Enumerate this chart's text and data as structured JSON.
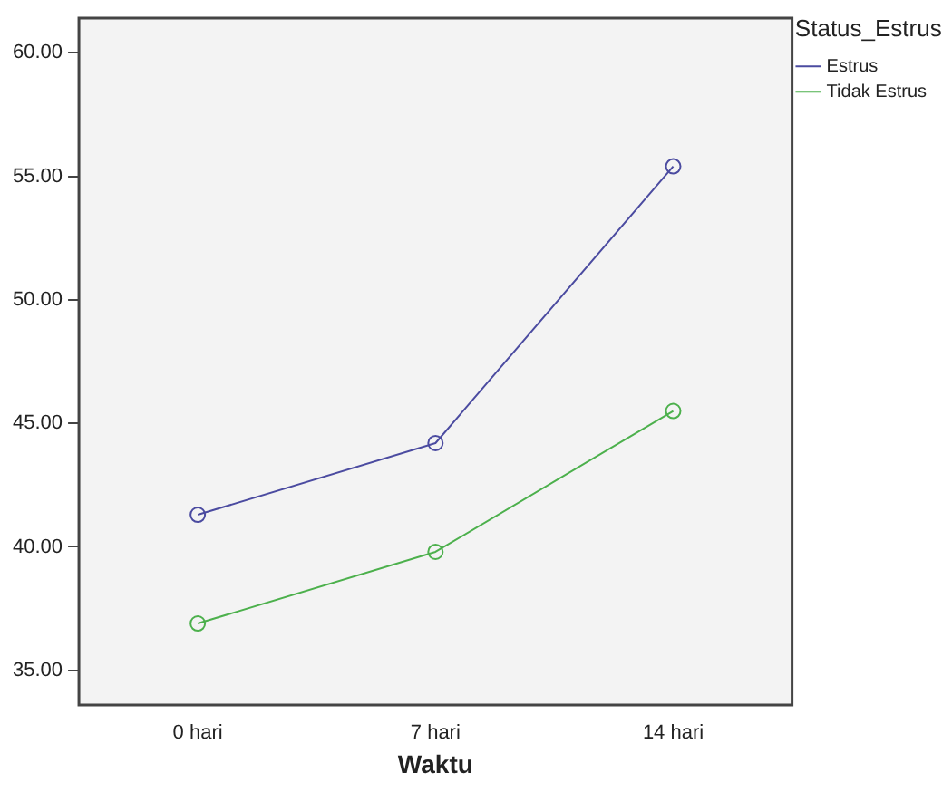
{
  "chart_data": {
    "type": "line",
    "xlabel": "Waktu",
    "legend_title": "Status_Estrus",
    "legend": "top right",
    "marker": "circle",
    "grid": false,
    "categories": [
      "0 hari",
      "7 hari",
      "14 hari"
    ],
    "ylim": [
      33.6,
      61.4
    ],
    "yticks": [
      {
        "value": 35,
        "label": "35.00"
      },
      {
        "value": 40,
        "label": "40.00"
      },
      {
        "value": 45,
        "label": "45.00"
      },
      {
        "value": 50,
        "label": "50.00"
      },
      {
        "value": 55,
        "label": "55.00"
      },
      {
        "value": 60,
        "label": "60.00"
      }
    ],
    "series": [
      {
        "name": "Estrus",
        "color": "#4b4ba0",
        "values": [
          41.3,
          44.2,
          55.4
        ]
      },
      {
        "name": "Tidak Estrus",
        "color": "#4cb04c",
        "values": [
          36.9,
          39.8,
          45.5
        ]
      }
    ]
  }
}
